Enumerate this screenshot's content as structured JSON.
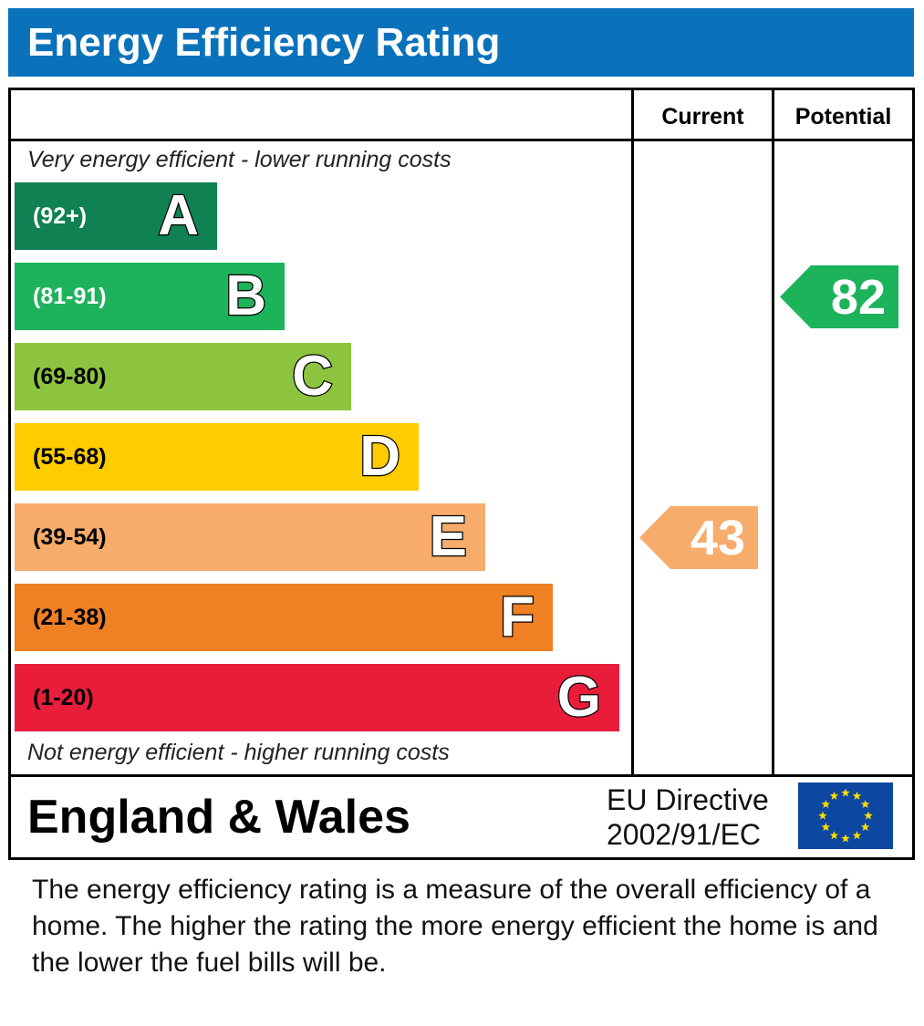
{
  "header": {
    "title": "Energy Efficiency Rating"
  },
  "columns": {
    "current": "Current",
    "potential": "Potential"
  },
  "notes": {
    "top": "Very energy efficient - lower running costs",
    "bottom": "Not energy efficient - higher running costs"
  },
  "chart_data": {
    "type": "bar",
    "title": "Energy Efficiency Rating",
    "categories": [
      "A",
      "B",
      "C",
      "D",
      "E",
      "F",
      "G"
    ],
    "ranges": [
      "(92+)",
      "(81-91)",
      "(69-80)",
      "(55-68)",
      "(39-54)",
      "(21-38)",
      "(1-20)"
    ],
    "colors": [
      "#0f8152",
      "#1db35b",
      "#8dc43f",
      "#ffcc00",
      "#f7ac6b",
      "#ef8023",
      "#e91d3a"
    ],
    "range_text_colors": [
      "#ffffff",
      "#ffffff",
      "#000000",
      "#000000",
      "#000000",
      "#000000",
      "#000000"
    ],
    "current": {
      "value": 43,
      "band": "E",
      "color": "#f7ac6b"
    },
    "potential": {
      "value": 82,
      "band": "B",
      "color": "#1db35b"
    }
  },
  "footer_region": "England & Wales",
  "directive": {
    "line1": "EU Directive",
    "line2": "2002/91/EC"
  },
  "description": "The energy efficiency rating is a measure of the overall efficiency of a home.  The higher the rating the more energy efficient the home is and the lower the fuel bills will be.",
  "eu_flag": {
    "icon": "eu-flag-icon",
    "bg": "#0e47a1",
    "stars": "#ffdd00"
  }
}
